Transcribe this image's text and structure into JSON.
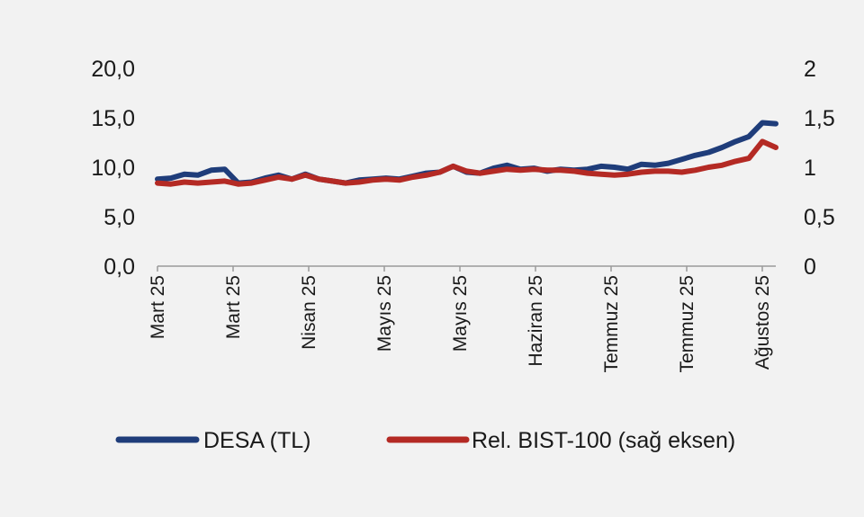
{
  "chart_data": {
    "type": "line",
    "x_tick_labels": [
      "Mart 25",
      "Mart 25",
      "Nisan 25",
      "Mayıs 25",
      "Mayıs 25",
      "Haziran 25",
      "Temmuz 25",
      "Temmuz 25",
      "Ağustos 25"
    ],
    "y_left": {
      "ticks": [
        "0,0",
        "5,0",
        "10,0",
        "15,0",
        "20,0"
      ],
      "range": [
        0,
        20
      ]
    },
    "y_right": {
      "ticks": [
        "0",
        "0,5",
        "1",
        "1,5",
        "2"
      ],
      "range": [
        0,
        2
      ]
    },
    "grid": false,
    "legend_position": "bottom",
    "series": [
      {
        "name": "DESA (TL)",
        "axis": "left",
        "color": "#1f3d7a",
        "values": [
          8.8,
          8.9,
          9.3,
          9.2,
          9.7,
          9.8,
          8.4,
          8.5,
          8.9,
          9.2,
          8.8,
          9.3,
          8.8,
          8.6,
          8.4,
          8.7,
          8.8,
          8.9,
          8.8,
          9.1,
          9.4,
          9.5,
          10.1,
          9.5,
          9.4,
          9.9,
          10.2,
          9.8,
          9.9,
          9.6,
          9.8,
          9.7,
          9.8,
          10.1,
          10.0,
          9.8,
          10.3,
          10.2,
          10.4,
          10.8,
          11.2,
          11.5,
          12.0,
          12.6,
          13.1,
          14.5,
          14.4
        ]
      },
      {
        "name": "Rel. BIST-100 (sağ eksen)",
        "axis": "right",
        "color": "#b42a24",
        "values": [
          0.84,
          0.83,
          0.85,
          0.84,
          0.85,
          0.86,
          0.83,
          0.84,
          0.87,
          0.9,
          0.88,
          0.92,
          0.88,
          0.86,
          0.84,
          0.85,
          0.87,
          0.88,
          0.87,
          0.9,
          0.92,
          0.95,
          1.01,
          0.96,
          0.94,
          0.96,
          0.98,
          0.97,
          0.98,
          0.97,
          0.97,
          0.96,
          0.94,
          0.93,
          0.92,
          0.93,
          0.95,
          0.96,
          0.96,
          0.95,
          0.97,
          1.0,
          1.02,
          1.06,
          1.09,
          1.26,
          1.2
        ]
      }
    ]
  }
}
